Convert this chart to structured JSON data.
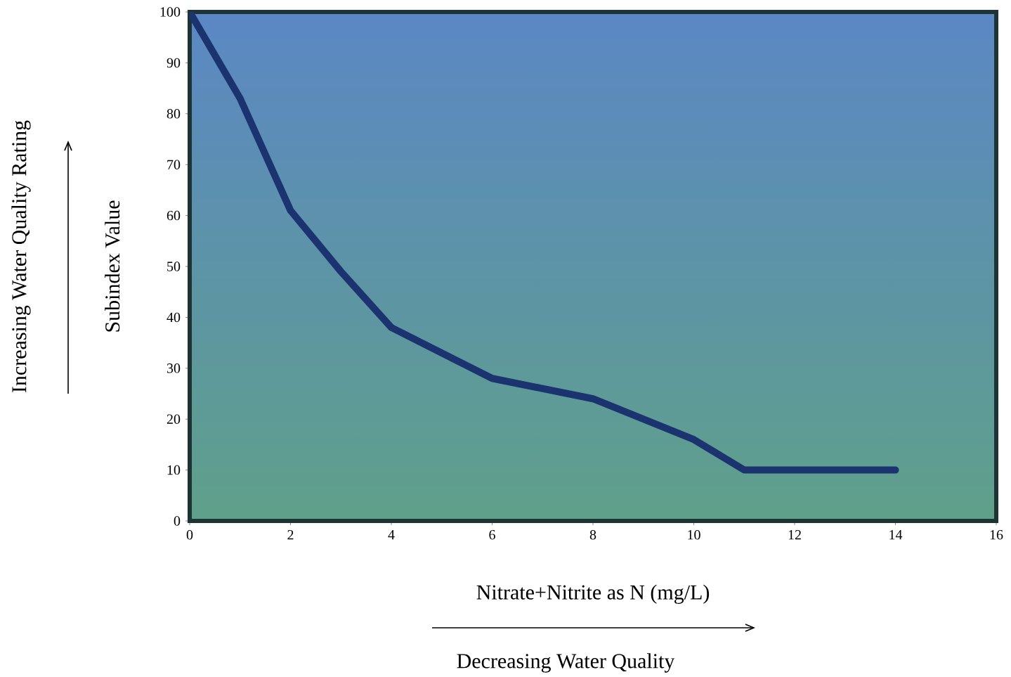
{
  "chart_data": {
    "type": "line",
    "xlabel": "Nitrate+Nitrite as N (mg/L)",
    "ylabel": "Subindex Value",
    "annotations": [
      "Increasing Water Quality Rating",
      "Decreasing Water Quality"
    ],
    "x": [
      0,
      1,
      2,
      3,
      4,
      6,
      8,
      9,
      10,
      11,
      14
    ],
    "series": [
      {
        "color": "#1b3470",
        "values": [
          100,
          83,
          61,
          49,
          38,
          28,
          24,
          20,
          16,
          10,
          10
        ]
      }
    ],
    "xlim": [
      0,
      16
    ],
    "ylim": [
      0,
      100
    ],
    "xticks": [
      0,
      2,
      4,
      6,
      8,
      10,
      12,
      14,
      16
    ],
    "yticks": [
      0,
      10,
      20,
      30,
      40,
      50,
      60,
      70,
      80,
      90,
      100
    ],
    "grid": false,
    "marker": "none",
    "line_style": "solid"
  }
}
